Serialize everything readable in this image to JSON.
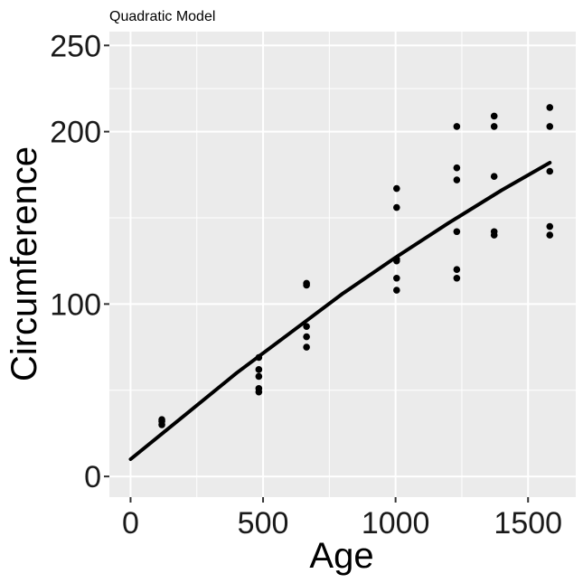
{
  "chart_data": {
    "type": "scatter",
    "title": "Quadratic Model",
    "xlabel": "Age",
    "ylabel": "Circumference",
    "xlim": [
      -80,
      1680
    ],
    "ylim": [
      -12,
      258
    ],
    "x_ticks": [
      0,
      500,
      1000,
      1500
    ],
    "x_tick_labels": [
      "0",
      "500",
      "1000",
      "1500"
    ],
    "y_ticks": [
      0,
      100,
      200,
      250
    ],
    "y_tick_labels": [
      "0",
      "100",
      "200",
      "250"
    ],
    "x_minor": [
      250,
      750,
      1250
    ],
    "y_minor": [
      50,
      150,
      225
    ],
    "grid": true,
    "panel_background": "#EBEBEB",
    "grid_color": "#FFFFFF",
    "point_color": "#000000",
    "line_color": "#000000",
    "series": [
      {
        "type": "points",
        "x": [
          118,
          118,
          118,
          484,
          484,
          484,
          484,
          484,
          664,
          664,
          664,
          664,
          664,
          1004,
          1004,
          1004,
          1004,
          1004,
          1004,
          1231,
          1231,
          1231,
          1231,
          1231,
          1231,
          1372,
          1372,
          1372,
          1372,
          1372,
          1582,
          1582,
          1582,
          1582,
          1582
        ],
        "y": [
          30,
          32,
          33,
          49,
          51,
          58,
          62,
          69,
          75,
          81,
          87,
          111,
          112,
          108,
          115,
          125,
          126,
          156,
          167,
          115,
          120,
          142,
          172,
          179,
          203,
          140,
          142,
          174,
          203,
          209,
          140,
          145,
          177,
          203,
          214
        ]
      },
      {
        "type": "line",
        "x": [
          0,
          200,
          400,
          600,
          800,
          1000,
          1200,
          1400,
          1582
        ],
        "y": [
          10,
          35,
          60,
          83,
          106,
          127,
          147,
          166,
          182
        ]
      }
    ]
  }
}
